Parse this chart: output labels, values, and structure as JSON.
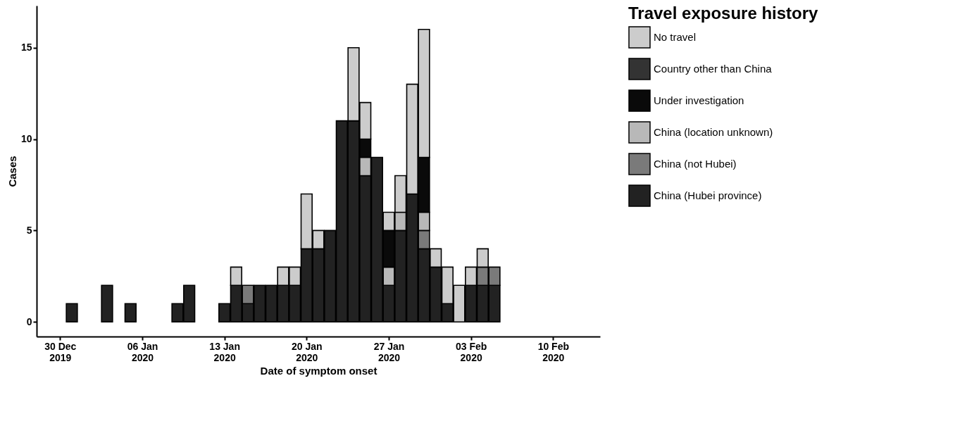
{
  "chart_data": {
    "type": "bar",
    "stacked": true,
    "xlabel": "Date of symptom onset",
    "ylabel": "Cases",
    "legend_title": "Travel exposure history",
    "legend": "right",
    "grid": false,
    "x": [
      "2019-12-31",
      "2020-01-03",
      "2020-01-05",
      "2020-01-09",
      "2020-01-10",
      "2020-01-13",
      "2020-01-14",
      "2020-01-15",
      "2020-01-16",
      "2020-01-17",
      "2020-01-18",
      "2020-01-19",
      "2020-01-20",
      "2020-01-21",
      "2020-01-22",
      "2020-01-23",
      "2020-01-24",
      "2020-01-25",
      "2020-01-26",
      "2020-01-27",
      "2020-01-28",
      "2020-01-29",
      "2020-01-30",
      "2020-01-31",
      "2020-02-01",
      "2020-02-02",
      "2020-02-03",
      "2020-02-04",
      "2020-02-05"
    ],
    "xlim": [
      "2019-12-28",
      "2020-02-14"
    ],
    "xticks": [
      {
        "value": "2019-12-30",
        "label": "30 Dec 2019"
      },
      {
        "value": "2020-01-06",
        "label": "06 Jan 2020"
      },
      {
        "value": "2020-01-13",
        "label": "13 Jan 2020"
      },
      {
        "value": "2020-01-20",
        "label": "20 Jan 2020"
      },
      {
        "value": "2020-01-27",
        "label": "27 Jan 2020"
      },
      {
        "value": "2020-02-03",
        "label": "03 Feb 2020"
      },
      {
        "value": "2020-02-10",
        "label": "10 Feb 2020"
      }
    ],
    "ylim": [
      -0.8,
      17.3
    ],
    "yticks": [
      0,
      5,
      10,
      15
    ],
    "series": [
      {
        "name": "China (Hubei province)",
        "color": "#222222",
        "values": [
          1,
          2,
          1,
          1,
          2,
          1,
          2,
          1,
          2,
          2,
          2,
          2,
          4,
          4,
          5,
          11,
          11,
          8,
          9,
          2,
          5,
          7,
          4,
          3,
          1,
          null,
          2,
          2,
          2
        ]
      },
      {
        "name": "China (not Hubei)",
        "color": "#7a7a7a",
        "values": [
          null,
          null,
          null,
          null,
          null,
          null,
          null,
          1,
          null,
          null,
          null,
          null,
          null,
          null,
          null,
          null,
          null,
          null,
          null,
          null,
          null,
          null,
          1,
          null,
          null,
          null,
          null,
          1,
          1
        ]
      },
      {
        "name": "China (location unknown)",
        "color": "#b8b8b8",
        "values": [
          null,
          null,
          null,
          null,
          null,
          null,
          null,
          null,
          null,
          null,
          null,
          null,
          null,
          null,
          null,
          null,
          null,
          1,
          null,
          1,
          1,
          null,
          1,
          null,
          null,
          null,
          null,
          null,
          null
        ]
      },
      {
        "name": "Under investigation",
        "color": "#0a0a0a",
        "values": [
          null,
          null,
          null,
          null,
          null,
          null,
          null,
          null,
          null,
          null,
          null,
          null,
          null,
          null,
          null,
          null,
          null,
          1,
          null,
          2,
          null,
          null,
          3,
          null,
          null,
          null,
          null,
          null,
          null
        ]
      },
      {
        "name": "Country other than China",
        "color": "#333333",
        "values": [
          null,
          null,
          null,
          null,
          null,
          null,
          null,
          null,
          null,
          null,
          null,
          null,
          null,
          null,
          null,
          null,
          null,
          null,
          null,
          null,
          null,
          null,
          null,
          null,
          null,
          null,
          null,
          null,
          null
        ]
      },
      {
        "name": "No travel",
        "color": "#cccccc",
        "values": [
          null,
          null,
          null,
          null,
          null,
          null,
          1,
          null,
          null,
          null,
          1,
          1,
          3,
          1,
          null,
          null,
          4,
          2,
          null,
          1,
          2,
          6,
          7,
          1,
          2,
          2,
          1,
          1,
          null
        ]
      }
    ]
  }
}
